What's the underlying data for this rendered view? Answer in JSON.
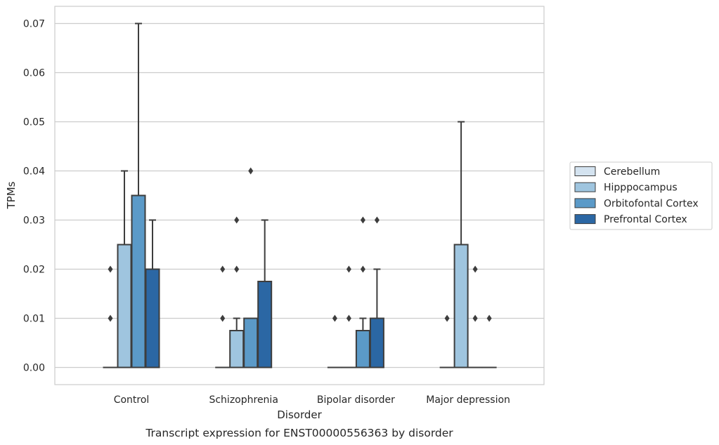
{
  "chart_data": {
    "type": "box",
    "caption": "Transcript expression for ENST00000556363 by disorder",
    "xlabel": "Disorder",
    "ylabel": "TPMs",
    "ylim": [
      -0.0035,
      0.0735
    ],
    "yticks": [
      "0.00",
      "0.01",
      "0.02",
      "0.03",
      "0.04",
      "0.05",
      "0.06",
      "0.07"
    ],
    "grid": "horizontal",
    "legend_position": "right",
    "categories": [
      "Control",
      "Schizophrenia",
      "Bipolar disorder",
      "Major depression"
    ],
    "series": [
      {
        "name": "Cerebellum",
        "color": "#d4e3f0",
        "boxes": [
          {
            "q1": 0,
            "median": 0,
            "q3": 0,
            "whisker_low": 0,
            "whisker_high": 0,
            "outliers": [
              0.01,
              0.02
            ]
          },
          {
            "q1": 0,
            "median": 0,
            "q3": 0,
            "whisker_low": 0,
            "whisker_high": 0,
            "outliers": [
              0.01,
              0.02
            ]
          },
          {
            "q1": 0,
            "median": 0,
            "q3": 0,
            "whisker_low": 0,
            "whisker_high": 0,
            "outliers": [
              0.01
            ]
          },
          {
            "q1": 0,
            "median": 0,
            "q3": 0,
            "whisker_low": 0,
            "whisker_high": 0,
            "outliers": [
              0.01
            ]
          }
        ]
      },
      {
        "name": "Hipppocampus",
        "color": "#9fc5df",
        "boxes": [
          {
            "q1": 0,
            "median": 0,
            "q3": 0.025,
            "whisker_low": 0,
            "whisker_high": 0.04,
            "outliers": []
          },
          {
            "q1": 0,
            "median": 0,
            "q3": 0.0075,
            "whisker_low": 0,
            "whisker_high": 0.01,
            "outliers": [
              0.02,
              0.03
            ]
          },
          {
            "q1": 0,
            "median": 0,
            "q3": 0,
            "whisker_low": 0,
            "whisker_high": 0,
            "outliers": [
              0.01,
              0.02
            ]
          },
          {
            "q1": 0,
            "median": 0,
            "q3": 0.025,
            "whisker_low": 0,
            "whisker_high": 0.05,
            "outliers": []
          }
        ]
      },
      {
        "name": "Orbitofontal Cortex",
        "color": "#5b9ac8",
        "boxes": [
          {
            "q1": 0,
            "median": 0,
            "q3": 0.035,
            "whisker_low": 0,
            "whisker_high": 0.07,
            "outliers": []
          },
          {
            "q1": 0,
            "median": 0,
            "q3": 0.01,
            "whisker_low": 0,
            "whisker_high": 0.01,
            "outliers": [
              0.04
            ]
          },
          {
            "q1": 0,
            "median": 0,
            "q3": 0.0075,
            "whisker_low": 0,
            "whisker_high": 0.01,
            "outliers": [
              0.02,
              0.03
            ]
          },
          {
            "q1": 0,
            "median": 0,
            "q3": 0,
            "whisker_low": 0,
            "whisker_high": 0,
            "outliers": [
              0.01,
              0.02
            ]
          }
        ]
      },
      {
        "name": "Prefrontal Cortex",
        "color": "#2b67a4",
        "boxes": [
          {
            "q1": 0,
            "median": 0,
            "q3": 0.02,
            "whisker_low": 0,
            "whisker_high": 0.03,
            "outliers": []
          },
          {
            "q1": 0,
            "median": 0,
            "q3": 0.0175,
            "whisker_low": 0,
            "whisker_high": 0.03,
            "outliers": []
          },
          {
            "q1": 0,
            "median": 0,
            "q3": 0.01,
            "whisker_low": 0,
            "whisker_high": 0.02,
            "outliers": [
              0.03
            ]
          },
          {
            "q1": 0,
            "median": 0,
            "q3": 0,
            "whisker_low": 0,
            "whisker_high": 0,
            "outliers": [
              0.01
            ]
          }
        ]
      }
    ]
  }
}
